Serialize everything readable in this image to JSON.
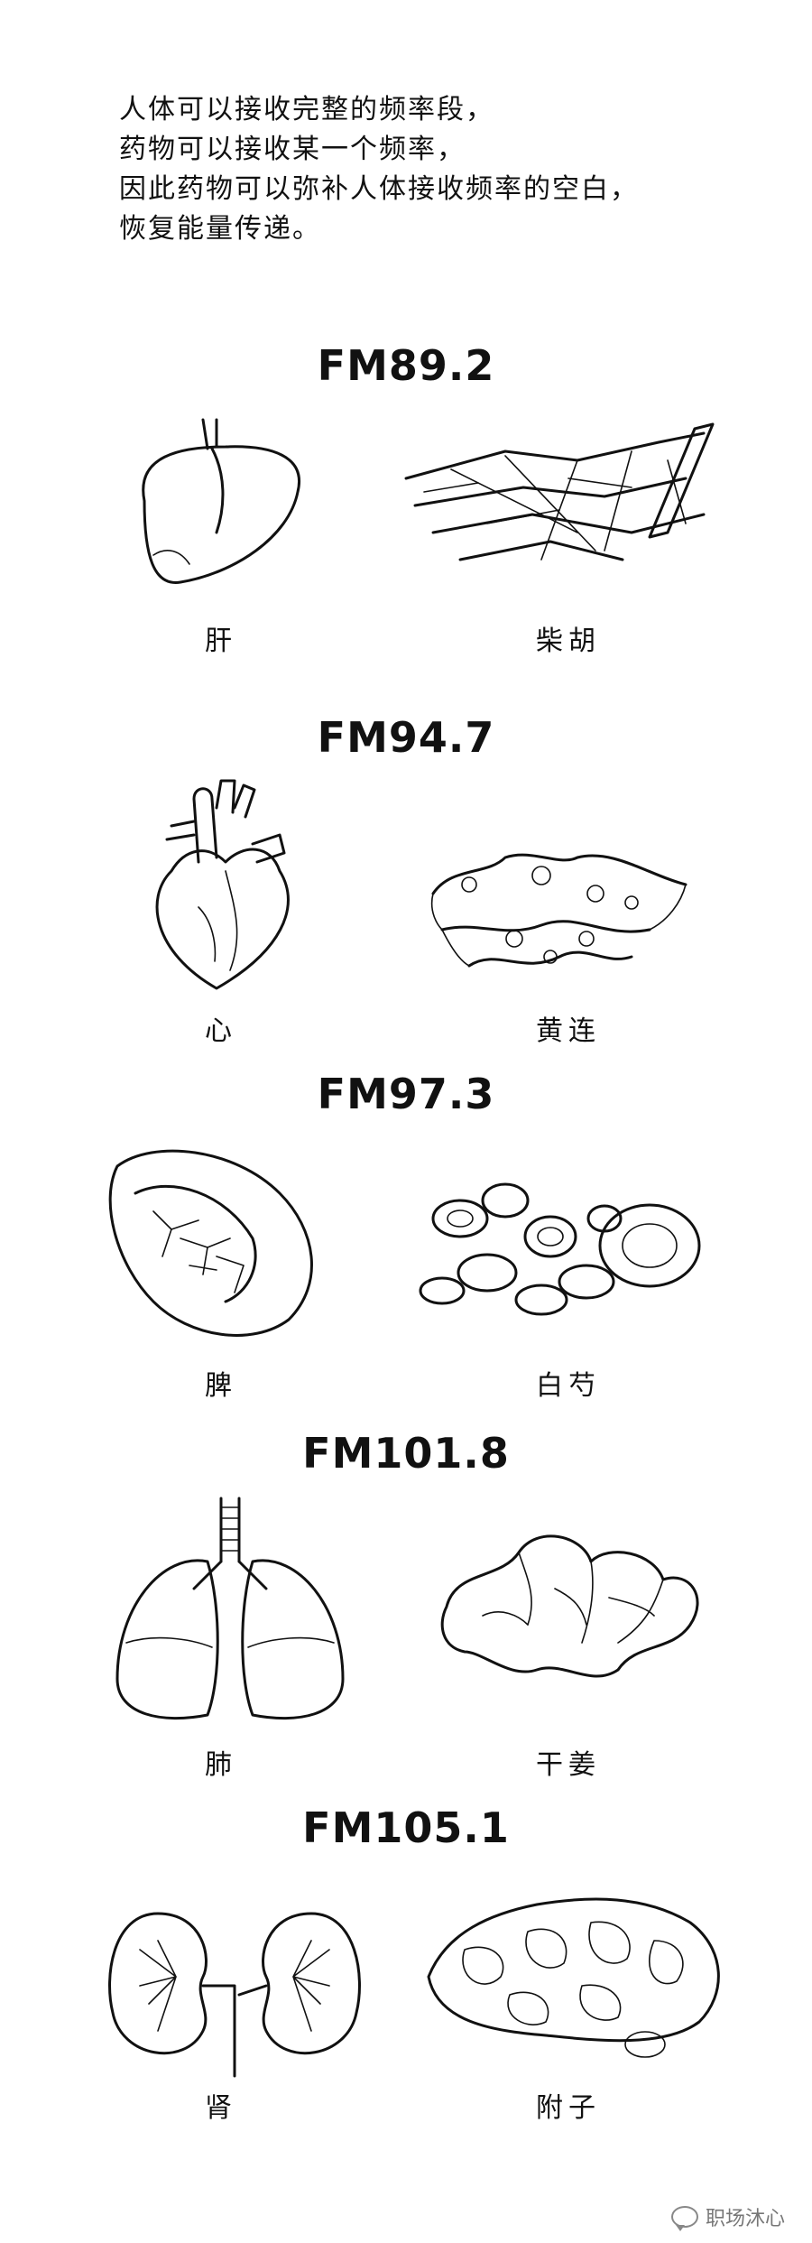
{
  "intro": {
    "lines": [
      "人体可以接收完整的频率段，",
      "药物可以接收某一个频率，",
      "因此药物可以弥补人体接收频率的空白，",
      "恢复能量传递。"
    ]
  },
  "pairs": [
    {
      "frequency": "FM89.2",
      "organ": "肝",
      "herb": "柴胡",
      "organ_icon": "liver-icon",
      "herb_icon": "bupleurum-root-icon"
    },
    {
      "frequency": "FM94.7",
      "organ": "心",
      "herb": "黄连",
      "organ_icon": "heart-icon",
      "herb_icon": "coptis-rhizome-icon"
    },
    {
      "frequency": "FM97.3",
      "organ": "脾",
      "herb": "白芍",
      "organ_icon": "spleen-icon",
      "herb_icon": "white-peony-slices-icon"
    },
    {
      "frequency": "FM101.8",
      "organ": "肺",
      "herb": "干姜",
      "organ_icon": "lungs-icon",
      "herb_icon": "dried-ginger-icon"
    },
    {
      "frequency": "FM105.1",
      "organ": "肾",
      "herb": "附子",
      "organ_icon": "kidneys-icon",
      "herb_icon": "aconite-slices-icon"
    }
  ],
  "watermark": {
    "text": "职场沐心",
    "icon": "chat-bubble-icon"
  }
}
